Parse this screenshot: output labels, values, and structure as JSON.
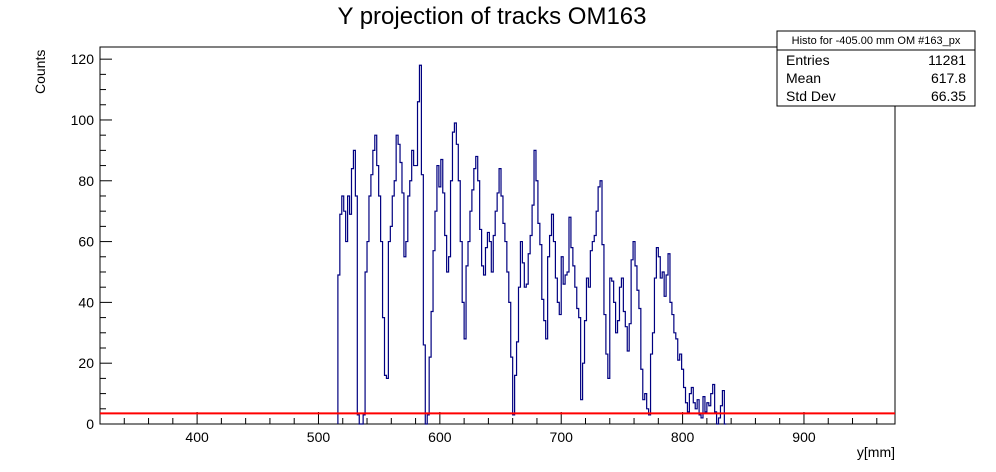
{
  "chart_data": {
    "type": "histogram",
    "title": "Y projection of tracks OM163",
    "xlabel": "y[mm]",
    "ylabel": "Counts",
    "xlim": [
      320,
      975
    ],
    "ylim": [
      0,
      124
    ],
    "x_ticks": [
      400,
      500,
      600,
      700,
      800,
      900
    ],
    "y_ticks": [
      0,
      20,
      40,
      60,
      80,
      100,
      120
    ],
    "bin_start": 516,
    "bin_width": 1.6,
    "bin_values": [
      49,
      69,
      75,
      70,
      60,
      75,
      69,
      84,
      90,
      75,
      3,
      0,
      0,
      3,
      50,
      60,
      75,
      82,
      90,
      95,
      85,
      75,
      60,
      35,
      16,
      15,
      60,
      65,
      75,
      80,
      95,
      92,
      86,
      76,
      55,
      60,
      75,
      80,
      90,
      85,
      85,
      106,
      118,
      82,
      26,
      0,
      3,
      22,
      37,
      57,
      70,
      85,
      78,
      87,
      76,
      62,
      50,
      55,
      80,
      96,
      99,
      92,
      80,
      60,
      40,
      28,
      52,
      60,
      70,
      77,
      84,
      88,
      80,
      64,
      52,
      49,
      58,
      63,
      60,
      50,
      62,
      70,
      76,
      84,
      75,
      66,
      60,
      50,
      40,
      22,
      3,
      16,
      27,
      45,
      60,
      53,
      45,
      46,
      56,
      62,
      72,
      90,
      80,
      66,
      59,
      41,
      34,
      28,
      55,
      62,
      69,
      60,
      48,
      40,
      36,
      55,
      46,
      49,
      50,
      68,
      58,
      52,
      45,
      38,
      35,
      8,
      20,
      34,
      48,
      45,
      57,
      60,
      62,
      70,
      78,
      80,
      59,
      36,
      23,
      15,
      48,
      47,
      40,
      30,
      34,
      45,
      48,
      37,
      32,
      24,
      33,
      54,
      60,
      52,
      44,
      38,
      18,
      8,
      10,
      5,
      3,
      23,
      30,
      48,
      58,
      55,
      48,
      50,
      42,
      49,
      56,
      40,
      36,
      30,
      28,
      21,
      23,
      18,
      12,
      7,
      4,
      10,
      12,
      7,
      5,
      8,
      3,
      2,
      9,
      4,
      7,
      6,
      10,
      13,
      4,
      0,
      2,
      6,
      11,
      0
    ],
    "fit_line": {
      "value": 3.5,
      "color": "#ff0000"
    },
    "hist_color": "#000080",
    "stats_box": {
      "header": "Histo for -405.00 mm OM #163_px",
      "rows": [
        {
          "label": "Entries",
          "value": "11281"
        },
        {
          "label": "Mean",
          "value": "617.8"
        },
        {
          "label": "Std Dev",
          "value": "66.35"
        }
      ]
    }
  }
}
